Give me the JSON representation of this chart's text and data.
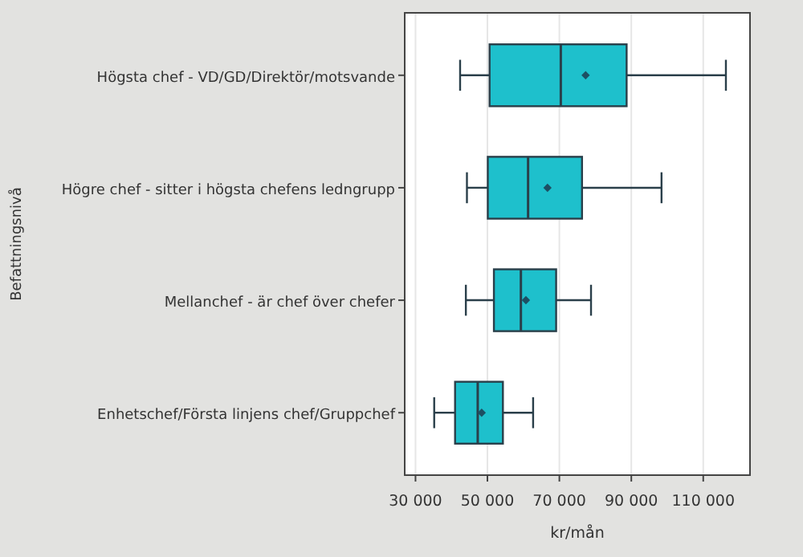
{
  "chart_data": {
    "type": "box",
    "orientation": "horizontal",
    "ylabel": "Befattningsnivå",
    "xlabel": "kr/mån",
    "categories": [
      "Högsta chef - VD/GD/Direktör/motsvande",
      "Högre chef - sitter i högsta chefens ledngrupp",
      "Mellanchef - är chef över chefer",
      "Enhetschef/Första linjens chef/Gruppchef"
    ],
    "color": "#1ec0cc",
    "boxes": [
      {
        "low": 42400,
        "q1": 50600,
        "median": 70400,
        "q3": 88700,
        "high": 116300,
        "mean": 77300
      },
      {
        "low": 44300,
        "q1": 50100,
        "median": 61300,
        "q3": 76300,
        "high": 98400,
        "mean": 66700
      },
      {
        "low": 44000,
        "q1": 51800,
        "median": 59300,
        "q3": 69100,
        "high": 78800,
        "mean": 60700
      },
      {
        "low": 35200,
        "q1": 41000,
        "median": 47300,
        "q3": 54300,
        "high": 62700,
        "mean": 48400
      }
    ],
    "xlim": [
      27000,
      123000
    ],
    "xticks": [
      {
        "value": 30000,
        "label": "30 000"
      },
      {
        "value": 50000,
        "label": "50 000"
      },
      {
        "value": 70000,
        "label": "70 000"
      },
      {
        "value": 90000,
        "label": "90 000"
      },
      {
        "value": 110000,
        "label": "110 000"
      }
    ],
    "grid": "x"
  }
}
